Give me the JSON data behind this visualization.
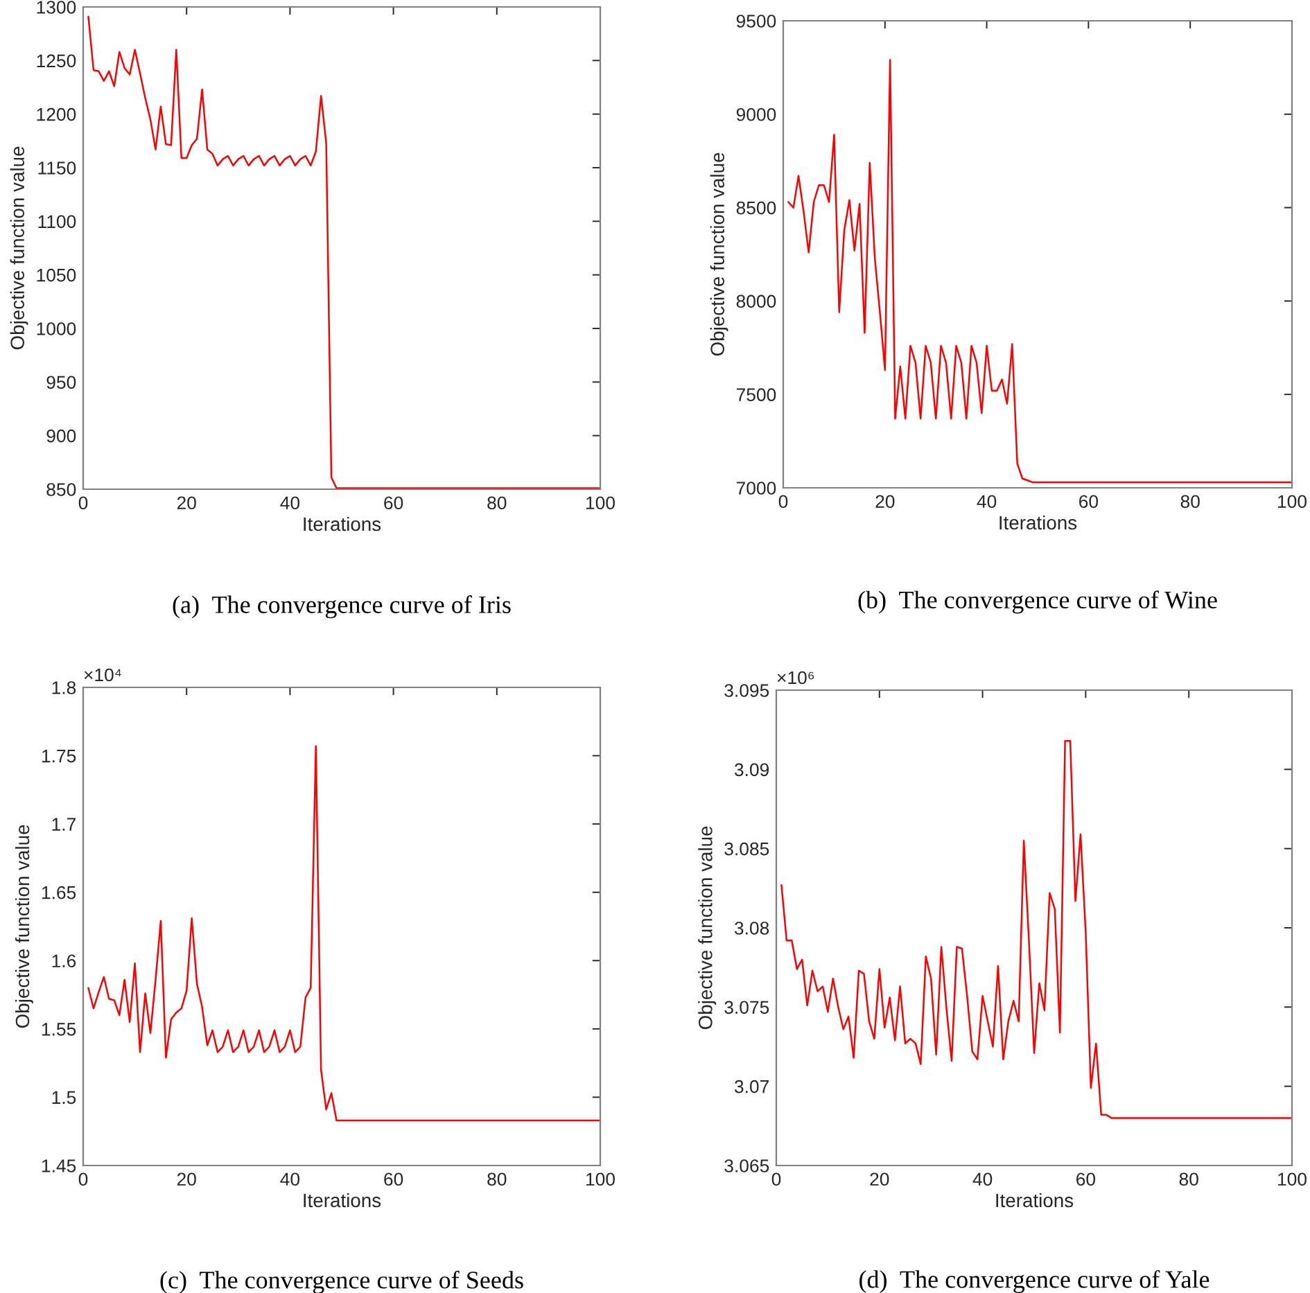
{
  "chart_data": [
    {
      "type": "line",
      "xlabel": "Iterations",
      "ylabel": "Objective function value",
      "annotations": [
        "(a)  The convergence curve of Iris"
      ],
      "xlim": [
        0,
        100
      ],
      "ylim": [
        850,
        1300
      ],
      "xticks": [
        0,
        20,
        40,
        60,
        80,
        100
      ],
      "yticks": [
        850,
        900,
        950,
        1000,
        1050,
        1100,
        1150,
        1200,
        1250,
        1300
      ],
      "grid": false,
      "series": [
        {
          "color": "#ff0000",
          "x": [
            1,
            2,
            3,
            4,
            5,
            6,
            7,
            8,
            9,
            10,
            11,
            12,
            13,
            14,
            15,
            16,
            17,
            18,
            19,
            20,
            21,
            22,
            23,
            24,
            25,
            26,
            27,
            28,
            29,
            30,
            31,
            32,
            33,
            34,
            35,
            36,
            37,
            38,
            39,
            40,
            41,
            42,
            43,
            44,
            45,
            46,
            47,
            48,
            49,
            100
          ],
          "values": [
            1291,
            1241,
            1240,
            1231,
            1240,
            1226,
            1258,
            1243,
            1237,
            1260,
            1238,
            1215,
            1195,
            1167,
            1207,
            1172,
            1171,
            1260,
            1159,
            1159,
            1171,
            1177,
            1223,
            1167,
            1163,
            1152,
            1158,
            1161,
            1152,
            1158,
            1161,
            1152,
            1158,
            1161,
            1152,
            1158,
            1161,
            1152,
            1158,
            1161,
            1152,
            1158,
            1161,
            1152,
            1165,
            1217,
            1173,
            861,
            851,
            851
          ]
        }
      ]
    },
    {
      "type": "line",
      "xlabel": "Iterations",
      "ylabel": "Objective function value",
      "annotations": [
        "(b)  The convergence curve of Wine"
      ],
      "xlim": [
        0,
        100
      ],
      "ylim": [
        7000,
        9500
      ],
      "xticks": [
        0,
        20,
        40,
        60,
        80,
        100
      ],
      "yticks": [
        7000,
        7500,
        8000,
        8500,
        9000,
        9500
      ],
      "grid": false,
      "series": [
        {
          "color": "#ff0000",
          "x": [
            1,
            2,
            3,
            4,
            5,
            6,
            7,
            8,
            9,
            10,
            11,
            12,
            13,
            14,
            15,
            16,
            17,
            18,
            19,
            20,
            21,
            22,
            23,
            24,
            25,
            26,
            27,
            28,
            29,
            30,
            31,
            32,
            33,
            34,
            35,
            36,
            37,
            38,
            39,
            40,
            41,
            42,
            43,
            44,
            45,
            46,
            47,
            48,
            49,
            100
          ],
          "values": [
            8530,
            8500,
            8670,
            8480,
            8260,
            8530,
            8620,
            8620,
            8530,
            8890,
            7940,
            8380,
            8540,
            8270,
            8520,
            7830,
            8740,
            8230,
            7940,
            7630,
            9290,
            7370,
            7650,
            7370,
            7760,
            7670,
            7370,
            7760,
            7670,
            7370,
            7760,
            7670,
            7370,
            7760,
            7670,
            7370,
            7760,
            7670,
            7400,
            7760,
            7520,
            7520,
            7580,
            7450,
            7770,
            7130,
            7050,
            7040,
            7030,
            7030
          ]
        }
      ]
    },
    {
      "type": "line",
      "xlabel": "Iterations",
      "ylabel": "Objective function value",
      "annotations": [
        "(c)  The convergence curve of Seeds",
        "×10⁴"
      ],
      "xlim": [
        0,
        100
      ],
      "ylim": [
        1.45,
        1.8
      ],
      "xticks": [
        0,
        20,
        40,
        60,
        80,
        100
      ],
      "yticks": [
        1.45,
        1.5,
        1.55,
        1.6,
        1.65,
        1.7,
        1.75,
        1.8
      ],
      "grid": false,
      "series": [
        {
          "color": "#ff0000",
          "x": [
            1,
            2,
            3,
            4,
            5,
            6,
            7,
            8,
            9,
            10,
            11,
            12,
            13,
            14,
            15,
            16,
            17,
            18,
            19,
            20,
            21,
            22,
            23,
            24,
            25,
            26,
            27,
            28,
            29,
            30,
            31,
            32,
            33,
            34,
            35,
            36,
            37,
            38,
            39,
            40,
            41,
            42,
            43,
            44,
            45,
            46,
            47,
            48,
            49,
            100
          ],
          "values": [
            1.58,
            1.565,
            1.577,
            1.588,
            1.572,
            1.571,
            1.56,
            1.586,
            1.555,
            1.598,
            1.533,
            1.576,
            1.547,
            1.586,
            1.629,
            1.529,
            1.557,
            1.562,
            1.565,
            1.578,
            1.631,
            1.583,
            1.566,
            1.538,
            1.549,
            1.533,
            1.537,
            1.549,
            1.533,
            1.537,
            1.549,
            1.533,
            1.537,
            1.549,
            1.533,
            1.537,
            1.549,
            1.533,
            1.537,
            1.549,
            1.533,
            1.537,
            1.573,
            1.58,
            1.757,
            1.52,
            1.491,
            1.503,
            1.483,
            1.483
          ]
        }
      ]
    },
    {
      "type": "line",
      "xlabel": "Iterations",
      "ylabel": "Objective function value",
      "annotations": [
        "(d)  The convergence curve of Yale",
        "×10⁶"
      ],
      "xlim": [
        0,
        100
      ],
      "ylim": [
        3.065,
        3.095
      ],
      "xticks": [
        0,
        20,
        40,
        60,
        80,
        100
      ],
      "yticks": [
        3.065,
        3.07,
        3.075,
        3.08,
        3.085,
        3.09,
        3.095
      ],
      "grid": false,
      "series": [
        {
          "color": "#ff0000",
          "x": [
            1,
            2,
            3,
            4,
            5,
            6,
            7,
            8,
            9,
            10,
            11,
            12,
            13,
            14,
            15,
            16,
            17,
            18,
            19,
            20,
            21,
            22,
            23,
            24,
            25,
            26,
            27,
            28,
            29,
            30,
            31,
            32,
            33,
            34,
            35,
            36,
            37,
            38,
            39,
            40,
            41,
            42,
            43,
            44,
            45,
            46,
            47,
            48,
            49,
            50,
            51,
            52,
            53,
            54,
            55,
            56,
            57,
            58,
            59,
            60,
            61,
            62,
            63,
            64,
            65,
            100
          ],
          "values": [
            3.0827,
            3.0792,
            3.0792,
            3.0774,
            3.078,
            3.0751,
            3.0773,
            3.076,
            3.0763,
            3.0747,
            3.0768,
            3.075,
            3.0736,
            3.0744,
            3.0718,
            3.0773,
            3.0771,
            3.0741,
            3.073,
            3.0774,
            3.0737,
            3.0756,
            3.0729,
            3.0763,
            3.0727,
            3.073,
            3.0727,
            3.0714,
            3.0782,
            3.0768,
            3.072,
            3.0788,
            3.0749,
            3.0716,
            3.0788,
            3.0787,
            3.0757,
            3.0722,
            3.0717,
            3.0757,
            3.0741,
            3.0725,
            3.0776,
            3.0717,
            3.0741,
            3.0754,
            3.0741,
            3.0855,
            3.0791,
            3.0721,
            3.0765,
            3.0748,
            3.0822,
            3.0812,
            3.0734,
            3.0918,
            3.0918,
            3.0817,
            3.0859,
            3.0797,
            3.0699,
            3.0727,
            3.0682,
            3.0682,
            3.068,
            3.068
          ]
        }
      ]
    }
  ]
}
